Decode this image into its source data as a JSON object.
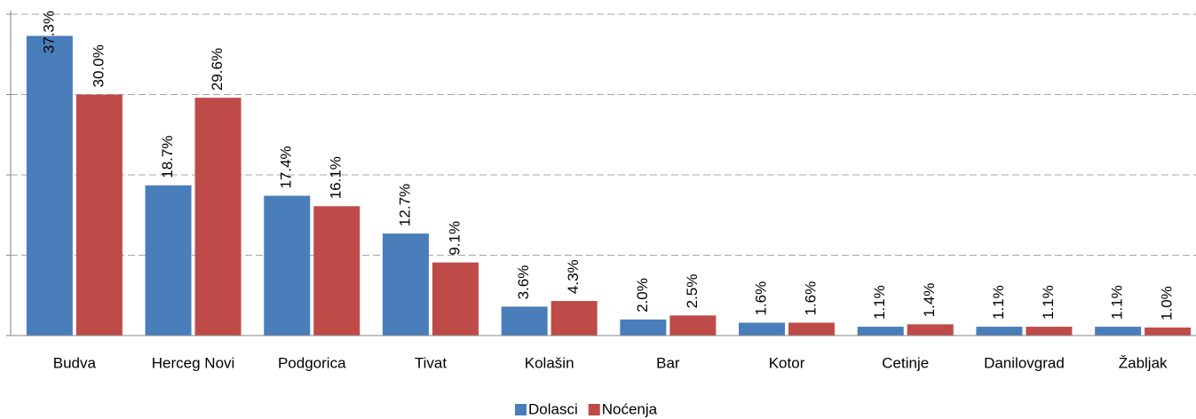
{
  "chart_data": {
    "type": "bar",
    "categories": [
      "Budva",
      "Herceg Novi",
      "Podgorica",
      "Tivat",
      "Kolašin",
      "Bar",
      "Kotor",
      "Cetinje",
      "Danilovgrad",
      "Žabljak"
    ],
    "series": [
      {
        "name": "Dolasci",
        "color": "#4a7ebb",
        "values": [
          37.3,
          18.7,
          17.4,
          12.7,
          3.6,
          2.0,
          1.6,
          1.1,
          1.1,
          1.1
        ],
        "value_labels": [
          "37.3%",
          "18.7%",
          "17.4%",
          "12.7%",
          "3.6%",
          "2.0%",
          "1.6%",
          "1.1%",
          "1.1%",
          "1.1%"
        ]
      },
      {
        "name": "Noćenja",
        "color": "#be4b48",
        "values": [
          30.0,
          29.6,
          16.1,
          9.1,
          4.3,
          2.5,
          1.6,
          1.4,
          1.1,
          1.0
        ],
        "value_labels": [
          "30.0%",
          "29.6%",
          "16.1%",
          "9.1%",
          "4.3%",
          "2.5%",
          "1.6%",
          "1.4%",
          "1.1%",
          "1.0%"
        ]
      }
    ],
    "ylim": [
      0,
      40
    ],
    "yticks": [
      0,
      10,
      20,
      30,
      40
    ],
    "grid": true
  }
}
